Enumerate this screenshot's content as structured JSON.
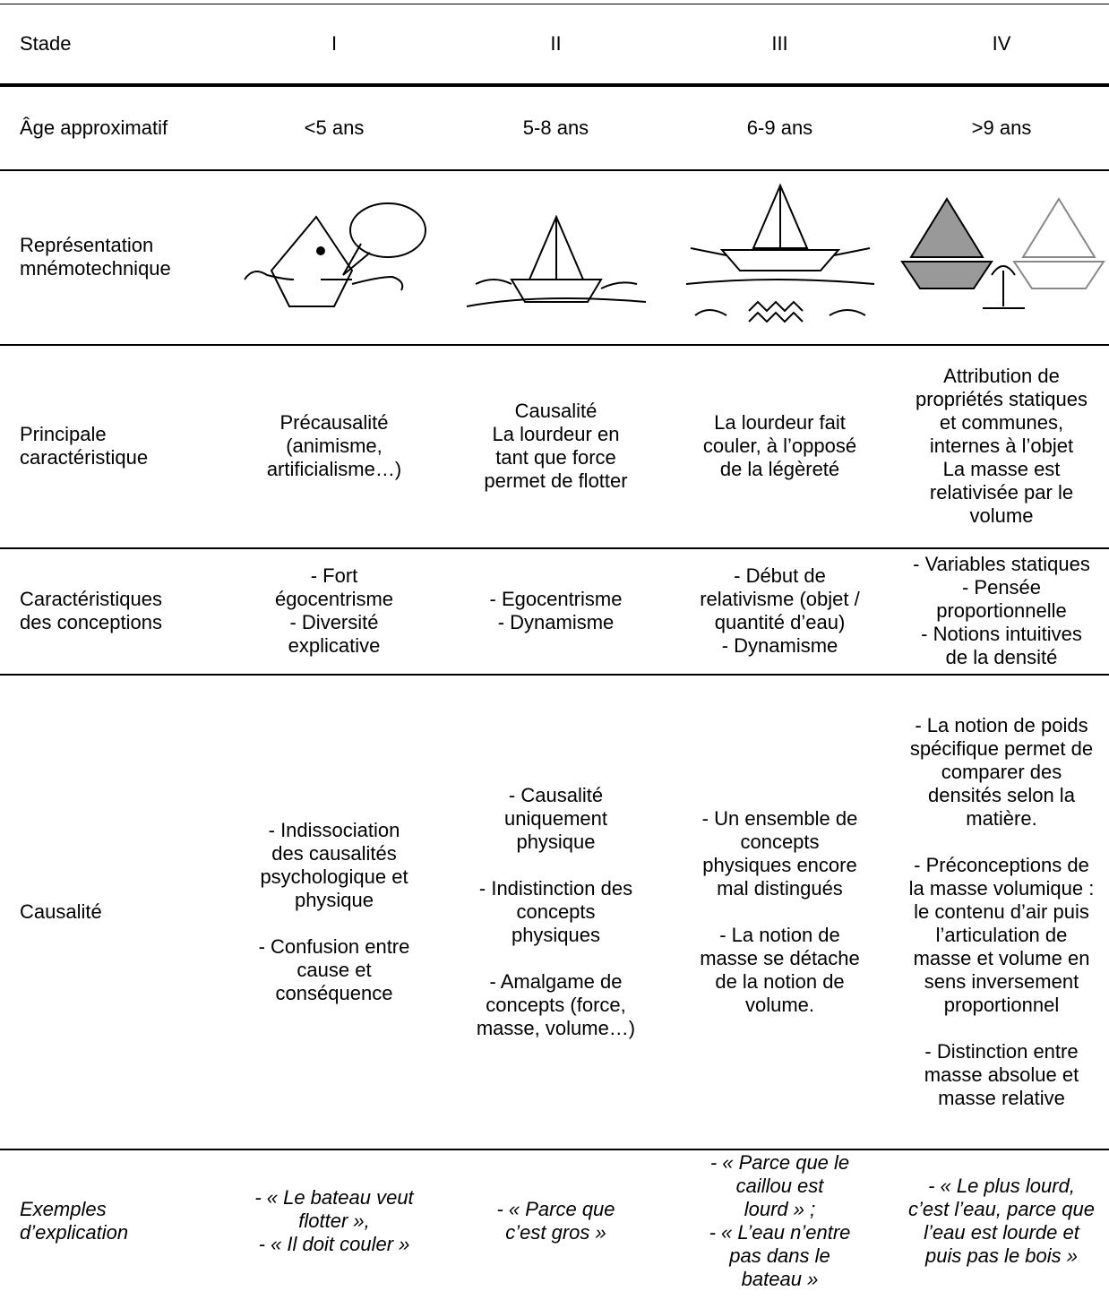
{
  "table": {
    "header": [
      "Stade",
      "I",
      "II",
      "III",
      "IV"
    ],
    "rows": [
      {
        "label": "Âge approximatif",
        "cells": [
          "<5 ans",
          "5-8 ans",
          "6-9 ans",
          ">9 ans"
        ]
      },
      {
        "label": "Représentation\nmnémotechnique"
      },
      {
        "label": "Principale\ncaractéristique",
        "cells": [
          "Précausalité\n(animisme,\nartificialisme…)",
          "Causalité\nLa lourdeur en\ntant que force\npermet de flotter",
          "La lourdeur fait\ncouler, à l’opposé\nde la légèreté",
          "Attribution de\npropriétés statiques\net communes,\ninternes à l’objet\nLa masse est\nrelativisée par le\nvolume"
        ]
      },
      {
        "label": "Caractéristiques\ndes conceptions",
        "cells": [
          "- Fort\négocentrisme\n- Diversité\nexplicative",
          "- Egocentrisme\n- Dynamisme",
          "- Début de\nrelativisme (objet /\nquantité d’eau)\n- Dynamisme",
          "- Variables statiques\n- Pensée\nproportionnelle\n- Notions intuitives\nde la densité"
        ]
      },
      {
        "label": "Causalité",
        "cells": [
          "- Indissociation\ndes causalités\npsychologique et\nphysique\n\n- Confusion entre\ncause et\nconséquence",
          "- Causalité\nuniquement\nphysique\n\n- Indistinction des\nconcepts\nphysiques\n\n-  Amalgame de\nconcepts (force,\nmasse, volume…)",
          "- Un ensemble de\nconcepts\nphysiques encore\nmal distingués\n\n- La notion de\nmasse se détache\nde la notion de\nvolume.",
          "- La notion de poids\nspécifique permet de\ncomparer des\ndensités selon la\nmatière.\n\n- Préconceptions de\nla masse volumique :\nle contenu d’air puis\nl’articulation de\nmasse et volume en\nsens inversement\nproportionnel\n\n- Distinction entre\nmasse absolue et\nmasse relative"
        ]
      },
      {
        "label": "Exemples\nd’explication",
        "cells": [
          "- « Le bateau veut\nflotter »,\n- « Il doit couler »",
          "- « Parce que\nc’est gros »",
          "- « Parce que le\ncaillou est\nlourd » ;\n- « L’eau n’entre\npas dans le\nbateau »",
          "- « Le plus lourd,\nc’est l’eau, parce que\nl’eau est lourde et\npuis pas le bois »"
        ]
      }
    ]
  }
}
